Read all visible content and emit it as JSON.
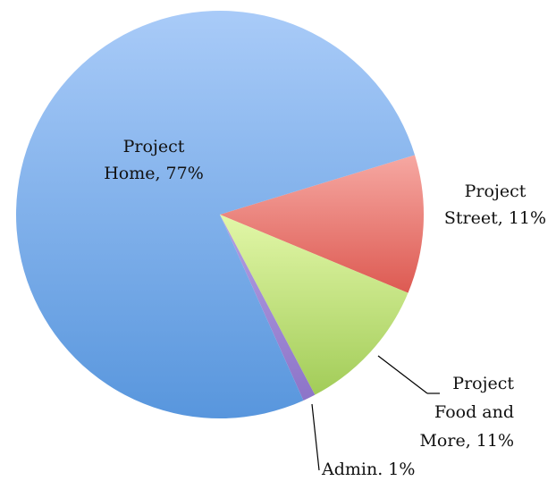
{
  "chart_data": {
    "type": "pie",
    "categories": [
      "Project Home",
      "Project Street",
      "Project Food and More",
      "Admin."
    ],
    "values": [
      77,
      11,
      11,
      1
    ],
    "value_labels": [
      [
        "Project",
        "Home, 77%"
      ],
      [
        "Project",
        "Street, 11%"
      ],
      [
        "Project",
        "Food and",
        "More, 11%"
      ],
      [
        "Admin. 1%"
      ]
    ],
    "colors": [
      "#7eafec",
      "#ee8a84",
      "#c7e68a",
      "#a18bd6"
    ]
  }
}
